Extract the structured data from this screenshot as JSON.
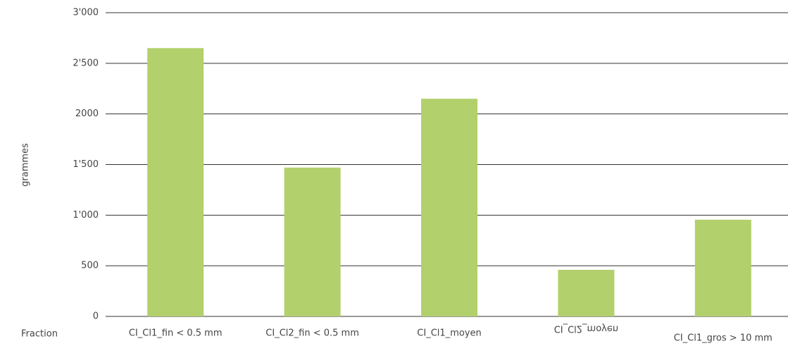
{
  "chart_data": {
    "type": "bar",
    "x_label": "Fraction",
    "y_label": "grammes",
    "categories": [
      "CI_Cl1_fin < 0.5 mm",
      "CI_Cl2_fin < 0.5 mm",
      "CI_Cl1_moyen",
      "CI_Cl2_moyen",
      "CI_Cl1_gros > 10 mm"
    ],
    "values": [
      2650,
      1470,
      2150,
      460,
      955
    ],
    "color": "#b2d06b",
    "ylim": [
      0,
      3000
    ],
    "yticks": [
      0,
      500,
      {
        "value": 1000,
        "label": "1'000"
      },
      {
        "value": 1500,
        "label": "1'500"
      },
      2000,
      {
        "value": 2500,
        "label": "2'500"
      },
      {
        "value": 3000,
        "label": "3'000"
      }
    ],
    "grid": true
  }
}
